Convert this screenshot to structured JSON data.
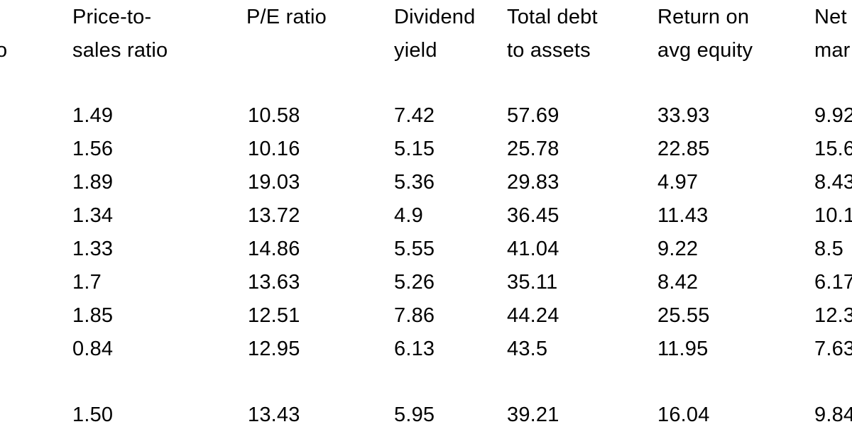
{
  "header_row_1": {
    "col_a": "",
    "col_b": "Price-to-",
    "col_c": "P/E ratio",
    "col_d": "Dividend",
    "col_e": "Total debt",
    "col_f": "Return on",
    "col_g": "Net"
  },
  "header_row_2": {
    "col_a": "o",
    "col_b": "sales ratio",
    "col_c": "",
    "col_d": "yield",
    "col_e": "to assets",
    "col_f": "avg equity",
    "col_g": "mar"
  },
  "rows": [
    {
      "price_to_sales": "1.49",
      "pe_ratio": "10.58",
      "dividend_yield": "7.42",
      "debt_to_assets": "57.69",
      "roe": "33.93",
      "net_margin": "9.92"
    },
    {
      "price_to_sales": "1.56",
      "pe_ratio": "10.16",
      "dividend_yield": "5.15",
      "debt_to_assets": "25.78",
      "roe": "22.85",
      "net_margin": "15.6"
    },
    {
      "price_to_sales": "1.89",
      "pe_ratio": "19.03",
      "dividend_yield": "5.36",
      "debt_to_assets": "29.83",
      "roe": "4.97",
      "net_margin": "8.43"
    },
    {
      "price_to_sales": "1.34",
      "pe_ratio": "13.72",
      "dividend_yield": "4.9",
      "debt_to_assets": "36.45",
      "roe": "11.43",
      "net_margin": "10.1"
    },
    {
      "price_to_sales": "1.33",
      "pe_ratio": "14.86",
      "dividend_yield": "5.55",
      "debt_to_assets": "41.04",
      "roe": "9.22",
      "net_margin": "8.5"
    },
    {
      "price_to_sales": "1.7",
      "pe_ratio": "13.63",
      "dividend_yield": "5.26",
      "debt_to_assets": "35.11",
      "roe": "8.42",
      "net_margin": "6.17"
    },
    {
      "price_to_sales": "1.85",
      "pe_ratio": "12.51",
      "dividend_yield": "7.86",
      "debt_to_assets": "44.24",
      "roe": "25.55",
      "net_margin": "12.3"
    },
    {
      "price_to_sales": "0.84",
      "pe_ratio": "12.95",
      "dividend_yield": "6.13",
      "debt_to_assets": "43.5",
      "roe": "11.95",
      "net_margin": "7.63"
    }
  ],
  "summary_row": {
    "price_to_sales": "1.50",
    "pe_ratio": "13.43",
    "dividend_yield": "5.95",
    "debt_to_assets": "39.21",
    "roe": "16.04",
    "net_margin": "9.84"
  }
}
